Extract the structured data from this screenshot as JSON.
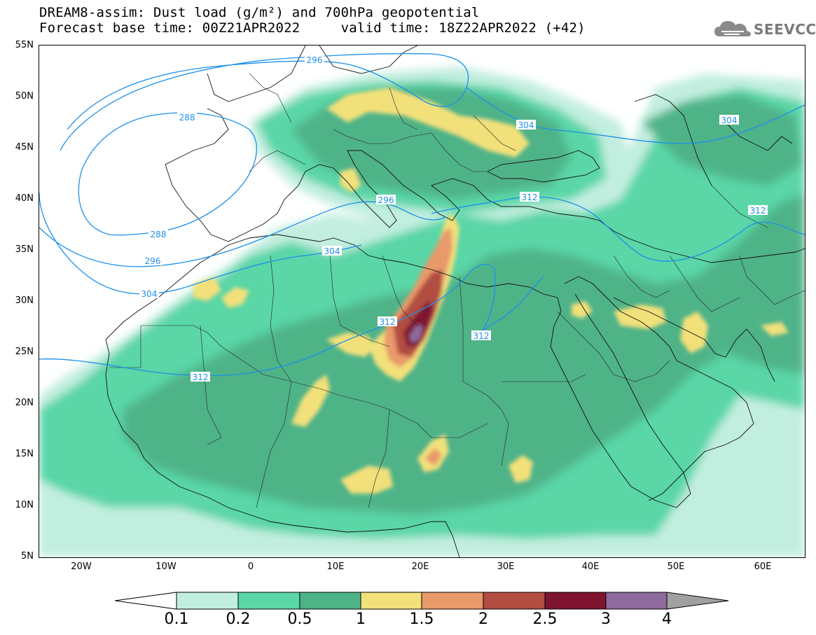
{
  "title": {
    "line1": "DREAM8-assim: Dust load (g/m²) and 700hPa geopotential",
    "line2": "Forecast base time: 00Z21APR2022     valid time: 18Z22APR2022 (+42)"
  },
  "logo": {
    "text": "SEEVCCC",
    "icon": "cloud-icon"
  },
  "axes": {
    "lat_labels": [
      "55N",
      "50N",
      "45N",
      "40N",
      "35N",
      "30N",
      "25N",
      "20N",
      "15N",
      "10N",
      "5N"
    ],
    "lon_labels": [
      "20W",
      "10W",
      "0",
      "10E",
      "20E",
      "30E",
      "40E",
      "50E",
      "60E"
    ],
    "lat_range": [
      5,
      55
    ],
    "lon_range": [
      -25,
      65
    ]
  },
  "contours": {
    "color": "#1e90e8",
    "labels": [
      "296",
      "288",
      "288",
      "296",
      "304",
      "296",
      "304",
      "312",
      "304",
      "312",
      "312",
      "312",
      "304",
      "312"
    ]
  },
  "colorbar": {
    "levels": [
      "0.1",
      "0.2",
      "0.5",
      "1",
      "1.5",
      "2",
      "2.5",
      "3",
      "4"
    ],
    "colors": [
      "#c2eee0",
      "#5ad6a7",
      "#4fb388",
      "#f2e07a",
      "#e89a6a",
      "#b24d42",
      "#7e1430",
      "#8f6a9c"
    ],
    "under_color": "#ffffff",
    "over_color": "#a0a0a0"
  },
  "map": {
    "features": [
      "dust-load-shading",
      "geopotential-contours",
      "coastlines",
      "country-borders"
    ]
  }
}
